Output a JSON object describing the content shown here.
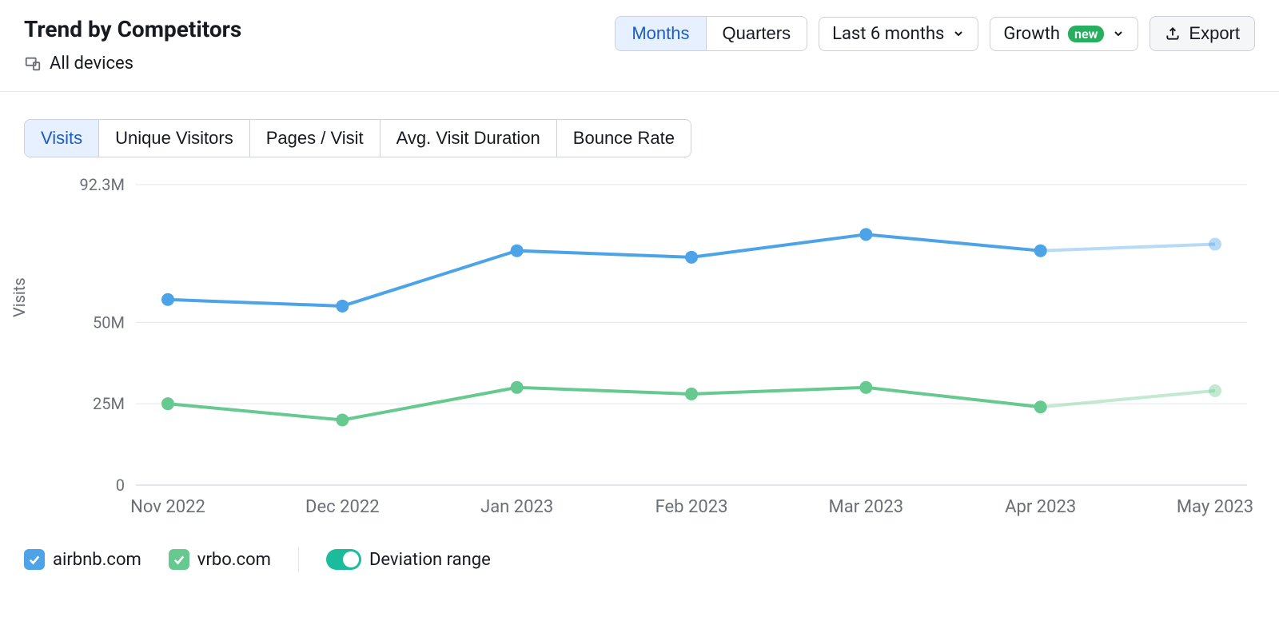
{
  "header": {
    "title": "Trend by Competitors",
    "devices_label": "All devices",
    "period_toggle": {
      "months": "Months",
      "quarters": "Quarters",
      "active": "months"
    },
    "range_dropdown": {
      "label": "Last 6 months"
    },
    "growth_dropdown": {
      "label": "Growth",
      "badge": "new"
    },
    "export_label": "Export"
  },
  "metric_tabs": {
    "items": [
      "Visits",
      "Unique Visitors",
      "Pages / Visit",
      "Avg. Visit Duration",
      "Bounce Rate"
    ],
    "active_index": 0
  },
  "chart": {
    "type": "line",
    "y_axis_label": "Visits",
    "y_ticks": [
      {
        "value": 92300000,
        "label": "92.3M"
      },
      {
        "value": 50000000,
        "label": "50M"
      },
      {
        "value": 25000000,
        "label": "25M"
      },
      {
        "value": 0,
        "label": "0"
      }
    ],
    "y_min": 0,
    "y_max": 92300000,
    "x_categories": [
      "Nov 2022",
      "Dec 2022",
      "Jan 2023",
      "Feb 2023",
      "Mar 2023",
      "Apr 2023",
      "May 2023"
    ],
    "grid_color": "#e5e7eb",
    "zero_line_color": "#c9ccd3",
    "tick_color": "#6b6f76",
    "background_color": "#ffffff",
    "line_width": 4,
    "marker_radius": 8,
    "faded_last_segment": true,
    "faded_opacity": 0.4,
    "series": [
      {
        "name": "airbnb.com",
        "color": "#4ca3e8",
        "values": [
          57000000,
          55000000,
          72000000,
          70000000,
          77000000,
          72000000,
          74000000
        ]
      },
      {
        "name": "vrbo.com",
        "color": "#66c98f",
        "values": [
          25000000,
          20000000,
          30000000,
          28000000,
          30000000,
          24000000,
          29000000
        ]
      }
    ]
  },
  "legend": {
    "items": [
      {
        "label": "airbnb.com",
        "color": "#4ca3e8",
        "checked": true
      },
      {
        "label": "vrbo.com",
        "color": "#66c98f",
        "checked": true
      }
    ],
    "deviation_label": "Deviation range",
    "deviation_on": true,
    "deviation_toggle_color": "#1abc9c"
  }
}
